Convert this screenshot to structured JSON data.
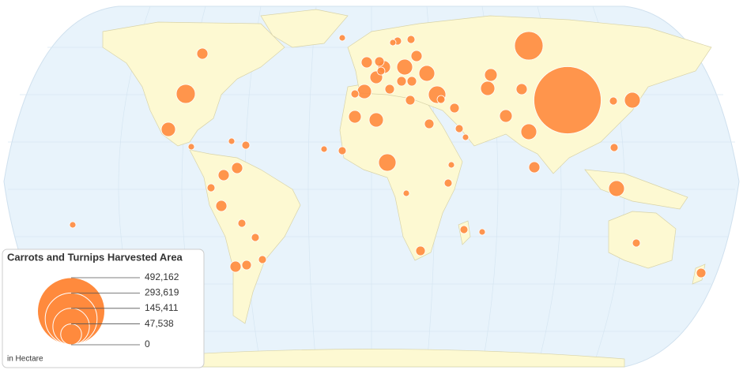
{
  "chart_data": {
    "type": "bubble-map",
    "title": "Carrots and Turnips Harvested Area",
    "unit_label": "in Hectare",
    "color": "#ff8a3d",
    "values": [
      492162,
      88300,
      39200,
      22100,
      13400,
      33000,
      27200,
      27200,
      27200,
      33000,
      27200,
      27200,
      17400,
      13400,
      17400,
      22100,
      9800,
      9800,
      22100,
      17400,
      13400,
      17400,
      17400,
      22100,
      13400,
      13400,
      13400,
      6800,
      9800,
      13400,
      9800,
      6800,
      9800,
      6800,
      13400,
      6800,
      6800,
      6800,
      4400,
      4400,
      6800,
      9800,
      6800,
      13400,
      6800,
      6800,
      4400,
      4400,
      9800,
      6800,
      9800,
      9800,
      9800,
      6800,
      4400,
      6800,
      4400,
      4400,
      4400,
      6800,
      6800,
      6800,
      6800,
      4400,
      4400
    ],
    "legend_ticks": [
      {
        "value": 492162,
        "label": "492,162"
      },
      {
        "value": 293619,
        "label": "293,619"
      },
      {
        "value": 145411,
        "label": "145,411"
      },
      {
        "value": 47538,
        "label": "47,538"
      },
      0
    ]
  }
}
